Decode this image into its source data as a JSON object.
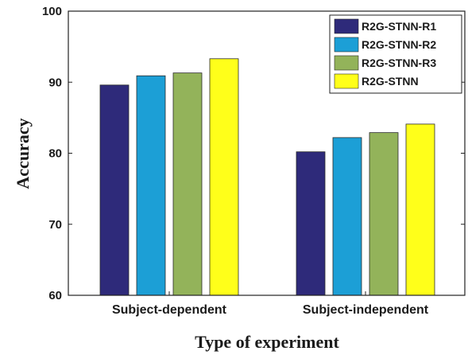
{
  "chart_data": {
    "type": "bar",
    "categories": [
      "Subject-dependent",
      "Subject-independent"
    ],
    "series": [
      {
        "name": "R2G-STNN-R1",
        "values": [
          89.6,
          80.2
        ],
        "color": "#2e2a7a"
      },
      {
        "name": "R2G-STNN-R2",
        "values": [
          90.9,
          82.2
        ],
        "color": "#1c9fd6"
      },
      {
        "name": "R2G-STNN-R3",
        "values": [
          91.3,
          82.9
        ],
        "color": "#93b35a"
      },
      {
        "name": "R2G-STNN",
        "values": [
          93.3,
          84.1
        ],
        "color": "#ffff1a"
      }
    ],
    "xlabel": "Type of experiment",
    "ylabel": "Accuracy",
    "ylim": [
      60,
      100
    ],
    "yticks": [
      60,
      70,
      80,
      90,
      100
    ],
    "legend_position": "top-right",
    "grid": false
  }
}
